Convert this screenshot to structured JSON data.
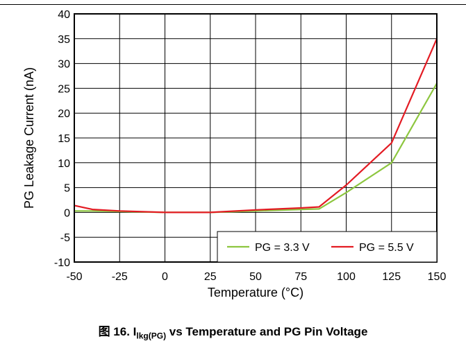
{
  "chart_data": {
    "type": "line",
    "xlabel": "Temperature (°C)",
    "ylabel": "PG Leakage Current (nA)",
    "xlim": [
      -50,
      150
    ],
    "ylim": [
      -10,
      40
    ],
    "xticks": [
      -50,
      -25,
      0,
      25,
      50,
      75,
      100,
      125,
      150
    ],
    "yticks": [
      -10,
      -5,
      0,
      5,
      10,
      15,
      20,
      25,
      30,
      35,
      40
    ],
    "grid": true,
    "legend_position": "bottom-right",
    "series": [
      {
        "name": "PG = 3.3 V",
        "color": "#8dc63f",
        "points": [
          [
            -50,
            0.3
          ],
          [
            -40,
            0.3
          ],
          [
            -25,
            0.2
          ],
          [
            0,
            0.0
          ],
          [
            25,
            0.0
          ],
          [
            50,
            0.3
          ],
          [
            75,
            0.6
          ],
          [
            85,
            0.7
          ],
          [
            100,
            4.0
          ],
          [
            125,
            10.0
          ],
          [
            150,
            26.0
          ]
        ]
      },
      {
        "name": "PG = 5.5 V",
        "color": "#e31b23",
        "points": [
          [
            -50,
            1.4
          ],
          [
            -40,
            0.6
          ],
          [
            -25,
            0.3
          ],
          [
            0,
            0.0
          ],
          [
            25,
            0.0
          ],
          [
            50,
            0.5
          ],
          [
            75,
            0.9
          ],
          [
            85,
            1.1
          ],
          [
            100,
            5.5
          ],
          [
            125,
            14.0
          ],
          [
            150,
            35.0
          ]
        ]
      }
    ]
  },
  "caption": {
    "prefix": "图 16. I",
    "sub": "lkg(PG)",
    "suffix": " vs Temperature and PG Pin Voltage"
  }
}
